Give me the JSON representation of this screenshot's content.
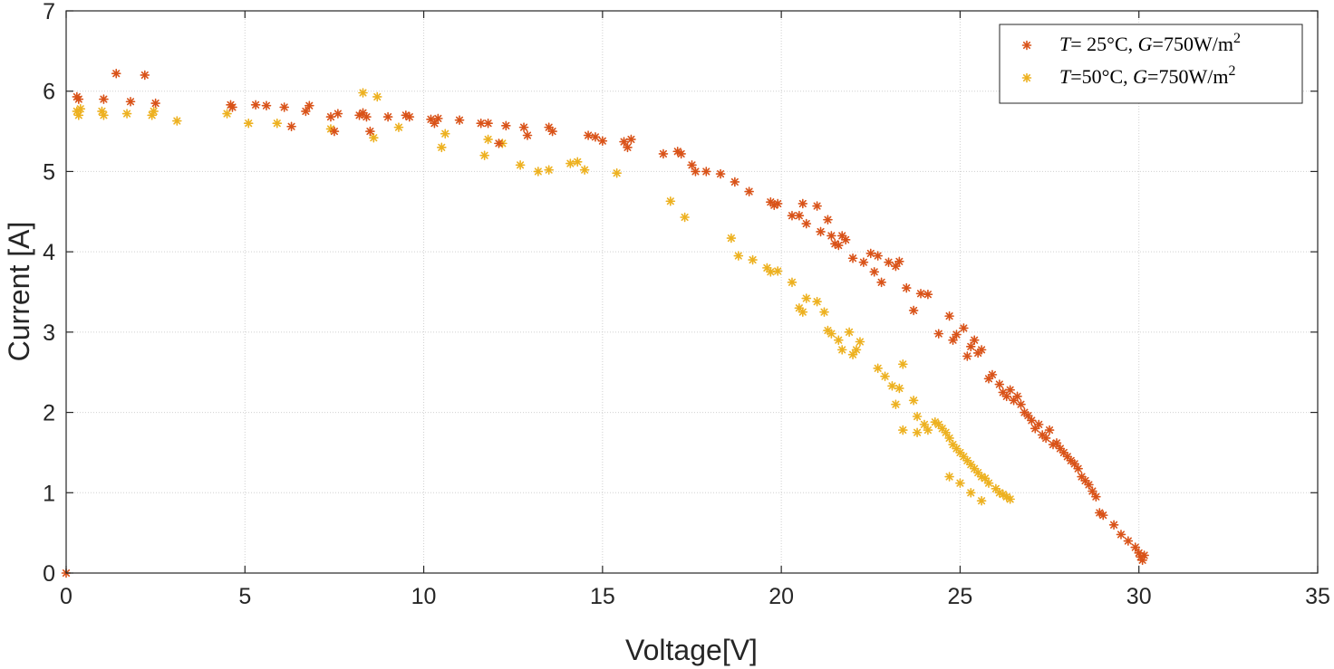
{
  "chart_data": {
    "type": "scatter",
    "xlabel": "Voltage[V]",
    "ylabel": "Current [A]",
    "xlim": [
      0,
      35
    ],
    "ylim": [
      0,
      7
    ],
    "xticks": [
      "0",
      "5",
      "10",
      "15",
      "20",
      "25",
      "30",
      "35"
    ],
    "yticks": [
      "0",
      "1",
      "2",
      "3",
      "4",
      "5",
      "6",
      "7"
    ],
    "grid": true,
    "legend_position": "top-right",
    "marker": "asterisk",
    "series": [
      {
        "name": "T= 25°C,  G=750W/m²",
        "legend": {
          "t_sym": "T",
          "t_val": "= 25°C,",
          "g_sym": "G",
          "g_val": "=750W/m",
          "exp": "2"
        },
        "color": "#d95319",
        "points": [
          [
            0.0,
            0.0
          ],
          [
            0.3,
            5.93
          ],
          [
            0.35,
            5.9
          ],
          [
            1.05,
            5.9
          ],
          [
            1.4,
            6.22
          ],
          [
            1.8,
            5.87
          ],
          [
            2.2,
            6.2
          ],
          [
            2.5,
            5.85
          ],
          [
            4.6,
            5.83
          ],
          [
            4.65,
            5.8
          ],
          [
            5.3,
            5.83
          ],
          [
            5.6,
            5.82
          ],
          [
            6.1,
            5.8
          ],
          [
            6.3,
            5.56
          ],
          [
            6.7,
            5.75
          ],
          [
            6.8,
            5.82
          ],
          [
            7.4,
            5.68
          ],
          [
            7.5,
            5.5
          ],
          [
            7.6,
            5.72
          ],
          [
            8.2,
            5.7
          ],
          [
            8.3,
            5.73
          ],
          [
            8.4,
            5.68
          ],
          [
            8.5,
            5.5
          ],
          [
            9.0,
            5.68
          ],
          [
            9.5,
            5.7
          ],
          [
            9.6,
            5.68
          ],
          [
            10.2,
            5.65
          ],
          [
            10.3,
            5.6
          ],
          [
            10.4,
            5.66
          ],
          [
            11.0,
            5.64
          ],
          [
            11.6,
            5.6
          ],
          [
            11.8,
            5.6
          ],
          [
            12.1,
            5.35
          ],
          [
            12.3,
            5.57
          ],
          [
            12.8,
            5.55
          ],
          [
            12.9,
            5.45
          ],
          [
            13.5,
            5.55
          ],
          [
            13.6,
            5.5
          ],
          [
            14.6,
            5.45
          ],
          [
            14.8,
            5.43
          ],
          [
            15.0,
            5.38
          ],
          [
            15.6,
            5.37
          ],
          [
            15.7,
            5.3
          ],
          [
            15.8,
            5.4
          ],
          [
            16.7,
            5.22
          ],
          [
            17.1,
            5.25
          ],
          [
            17.2,
            5.22
          ],
          [
            17.5,
            5.08
          ],
          [
            17.6,
            5.0
          ],
          [
            17.9,
            5.0
          ],
          [
            18.3,
            4.97
          ],
          [
            18.7,
            4.87
          ],
          [
            19.1,
            4.75
          ],
          [
            19.7,
            4.62
          ],
          [
            19.8,
            4.58
          ],
          [
            19.9,
            4.6
          ],
          [
            20.3,
            4.45
          ],
          [
            20.5,
            4.45
          ],
          [
            20.6,
            4.6
          ],
          [
            20.7,
            4.35
          ],
          [
            21.0,
            4.57
          ],
          [
            21.1,
            4.25
          ],
          [
            21.3,
            4.4
          ],
          [
            21.4,
            4.2
          ],
          [
            21.5,
            4.1
          ],
          [
            21.6,
            4.08
          ],
          [
            21.7,
            4.2
          ],
          [
            21.8,
            4.15
          ],
          [
            22.0,
            3.92
          ],
          [
            22.3,
            3.87
          ],
          [
            22.5,
            3.98
          ],
          [
            22.6,
            3.75
          ],
          [
            22.7,
            3.95
          ],
          [
            22.8,
            3.62
          ],
          [
            23.0,
            3.87
          ],
          [
            23.2,
            3.82
          ],
          [
            23.3,
            3.88
          ],
          [
            23.5,
            3.55
          ],
          [
            23.7,
            3.27
          ],
          [
            23.9,
            3.48
          ],
          [
            24.1,
            3.47
          ],
          [
            24.4,
            2.98
          ],
          [
            24.7,
            3.2
          ],
          [
            24.8,
            2.9
          ],
          [
            24.9,
            2.97
          ],
          [
            25.1,
            3.05
          ],
          [
            25.2,
            2.7
          ],
          [
            25.3,
            2.82
          ],
          [
            25.4,
            2.9
          ],
          [
            25.5,
            2.74
          ],
          [
            25.6,
            2.78
          ],
          [
            25.8,
            2.42
          ],
          [
            25.9,
            2.47
          ],
          [
            26.1,
            2.35
          ],
          [
            26.2,
            2.25
          ],
          [
            26.3,
            2.2
          ],
          [
            26.4,
            2.28
          ],
          [
            26.5,
            2.15
          ],
          [
            26.6,
            2.2
          ],
          [
            26.7,
            2.1
          ],
          [
            26.8,
            2.0
          ],
          [
            26.9,
            1.96
          ],
          [
            27.0,
            1.9
          ],
          [
            27.1,
            1.8
          ],
          [
            27.2,
            1.85
          ],
          [
            27.3,
            1.72
          ],
          [
            27.4,
            1.68
          ],
          [
            27.5,
            1.78
          ],
          [
            27.6,
            1.6
          ],
          [
            27.7,
            1.62
          ],
          [
            27.8,
            1.55
          ],
          [
            27.9,
            1.5
          ],
          [
            28.0,
            1.45
          ],
          [
            28.1,
            1.4
          ],
          [
            28.2,
            1.36
          ],
          [
            28.3,
            1.3
          ],
          [
            28.4,
            1.2
          ],
          [
            28.5,
            1.15
          ],
          [
            28.6,
            1.1
          ],
          [
            28.7,
            1.02
          ],
          [
            28.8,
            0.95
          ],
          [
            28.9,
            0.75
          ],
          [
            29.0,
            0.72
          ],
          [
            29.3,
            0.6
          ],
          [
            29.5,
            0.48
          ],
          [
            29.7,
            0.4
          ],
          [
            29.9,
            0.32
          ],
          [
            30.0,
            0.25
          ],
          [
            30.05,
            0.2
          ],
          [
            30.1,
            0.16
          ],
          [
            30.15,
            0.22
          ]
        ]
      },
      {
        "name": "T=50°C,  G=750W/m²",
        "legend": {
          "t_sym": "T",
          "t_val": "=50°C,",
          "g_sym": "G",
          "g_val": "=750W/m",
          "exp": "2"
        },
        "color": "#edb120",
        "points": [
          [
            0.3,
            5.75
          ],
          [
            0.35,
            5.7
          ],
          [
            0.4,
            5.78
          ],
          [
            1.0,
            5.75
          ],
          [
            1.05,
            5.7
          ],
          [
            1.7,
            5.72
          ],
          [
            2.4,
            5.7
          ],
          [
            2.45,
            5.75
          ],
          [
            3.1,
            5.63
          ],
          [
            4.5,
            5.72
          ],
          [
            5.1,
            5.6
          ],
          [
            5.9,
            5.6
          ],
          [
            7.4,
            5.53
          ],
          [
            8.3,
            5.98
          ],
          [
            8.6,
            5.42
          ],
          [
            8.7,
            5.93
          ],
          [
            9.3,
            5.55
          ],
          [
            10.5,
            5.3
          ],
          [
            10.6,
            5.47
          ],
          [
            11.7,
            5.2
          ],
          [
            11.8,
            5.4
          ],
          [
            12.2,
            5.35
          ],
          [
            12.7,
            5.08
          ],
          [
            13.2,
            5.0
          ],
          [
            13.5,
            5.02
          ],
          [
            14.1,
            5.1
          ],
          [
            14.3,
            5.12
          ],
          [
            14.5,
            5.02
          ],
          [
            15.4,
            4.98
          ],
          [
            16.9,
            4.63
          ],
          [
            17.3,
            4.43
          ],
          [
            18.6,
            4.17
          ],
          [
            18.8,
            3.95
          ],
          [
            19.2,
            3.9
          ],
          [
            19.6,
            3.8
          ],
          [
            19.7,
            3.75
          ],
          [
            19.9,
            3.76
          ],
          [
            20.3,
            3.62
          ],
          [
            20.5,
            3.3
          ],
          [
            20.6,
            3.25
          ],
          [
            20.7,
            3.42
          ],
          [
            21.0,
            3.38
          ],
          [
            21.2,
            3.25
          ],
          [
            21.3,
            3.02
          ],
          [
            21.4,
            2.98
          ],
          [
            21.6,
            2.9
          ],
          [
            21.7,
            2.78
          ],
          [
            21.9,
            3.0
          ],
          [
            22.0,
            2.72
          ],
          [
            22.1,
            2.78
          ],
          [
            22.2,
            2.88
          ],
          [
            22.7,
            2.55
          ],
          [
            22.9,
            2.45
          ],
          [
            23.1,
            2.33
          ],
          [
            23.2,
            2.1
          ],
          [
            23.3,
            2.3
          ],
          [
            23.4,
            2.6
          ],
          [
            23.7,
            2.15
          ],
          [
            23.8,
            1.95
          ],
          [
            24.0,
            1.85
          ],
          [
            24.1,
            1.78
          ],
          [
            24.3,
            1.88
          ],
          [
            24.4,
            1.85
          ],
          [
            24.5,
            1.8
          ],
          [
            24.6,
            1.75
          ],
          [
            24.7,
            1.68
          ],
          [
            24.8,
            1.6
          ],
          [
            24.9,
            1.55
          ],
          [
            25.0,
            1.5
          ],
          [
            25.1,
            1.45
          ],
          [
            25.2,
            1.4
          ],
          [
            25.3,
            1.35
          ],
          [
            25.4,
            1.3
          ],
          [
            25.5,
            1.25
          ],
          [
            25.6,
            1.2
          ],
          [
            25.7,
            1.18
          ],
          [
            25.8,
            1.12
          ],
          [
            26.0,
            1.05
          ],
          [
            26.1,
            1.0
          ],
          [
            26.2,
            0.98
          ],
          [
            26.3,
            0.95
          ],
          [
            26.4,
            0.92
          ],
          [
            24.7,
            1.2
          ],
          [
            25.0,
            1.12
          ],
          [
            25.3,
            1.0
          ],
          [
            25.6,
            0.9
          ],
          [
            23.4,
            1.78
          ],
          [
            23.8,
            1.75
          ]
        ]
      }
    ]
  }
}
